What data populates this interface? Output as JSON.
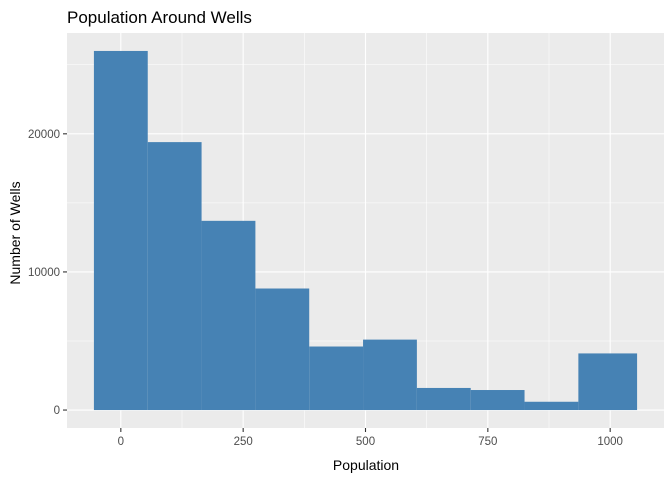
{
  "chart_data": {
    "type": "bar",
    "title": "Population Around Wells",
    "xlabel": "Population",
    "ylabel": "Number of Wells",
    "bin_edges": [
      -55,
      55,
      165,
      275,
      385,
      495,
      605,
      715,
      825,
      935,
      1055
    ],
    "values": [
      26000,
      19400,
      13700,
      8800,
      4600,
      5100,
      1600,
      1450,
      600,
      4100
    ],
    "xlim": [
      -110,
      1110
    ],
    "ylim": [
      -1300,
      27300
    ],
    "x_ticks": [
      0,
      250,
      500,
      750,
      1000
    ],
    "x_tick_labels": [
      "0",
      "250",
      "500",
      "750",
      "1000"
    ],
    "y_ticks": [
      0,
      10000,
      20000
    ],
    "y_tick_labels": [
      "0",
      "10000",
      "20000"
    ],
    "bar_color": "#4682B4",
    "panel_color": "#EBEBEB",
    "grid": true
  }
}
